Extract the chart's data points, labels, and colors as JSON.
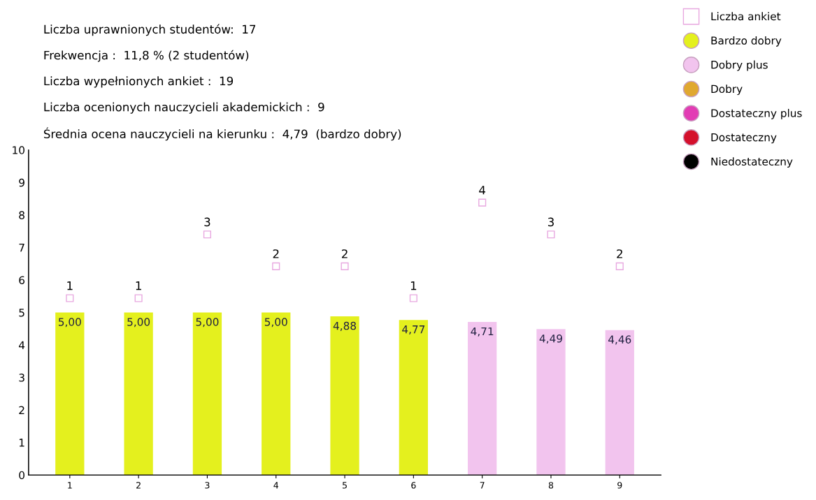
{
  "chart_data": {
    "type": "bar",
    "categories": [
      "1",
      "2",
      "3",
      "4",
      "5",
      "6",
      "7",
      "8",
      "9"
    ],
    "series": [
      {
        "name": "Liczba ankiet",
        "type": "scatter",
        "axis": "y2",
        "color": "#ffffff",
        "values": [
          1,
          1,
          3,
          2,
          2,
          1,
          4,
          3,
          2
        ],
        "value_labels": [
          "1",
          "1",
          "3",
          "2",
          "2",
          "1",
          "4",
          "3",
          "2"
        ]
      },
      {
        "name": "Bardzo dobry",
        "color": "#e4f01e",
        "values": [
          5.0,
          5.0,
          5.0,
          5.0,
          4.88,
          4.77,
          null,
          null,
          null
        ],
        "value_labels": [
          "5,00",
          "5,00",
          "5,00",
          "5,00",
          "4,88",
          "4,77",
          null,
          null,
          null
        ]
      },
      {
        "name": "Dobry plus",
        "color": "#f2c4ee",
        "values": [
          null,
          null,
          null,
          null,
          null,
          null,
          4.71,
          4.49,
          4.46
        ],
        "value_labels": [
          null,
          null,
          null,
          null,
          null,
          null,
          "4,71",
          "4,49",
          "4,46"
        ]
      },
      {
        "name": "Dobry",
        "color": "#e0a830",
        "values": [
          null,
          null,
          null,
          null,
          null,
          null,
          null,
          null,
          null
        ]
      },
      {
        "name": "Dostateczny plus",
        "color": "#e23cb4",
        "values": [
          null,
          null,
          null,
          null,
          null,
          null,
          null,
          null,
          null
        ]
      },
      {
        "name": "Dostateczny",
        "color": "#d4102c",
        "values": [
          null,
          null,
          null,
          null,
          null,
          null,
          null,
          null,
          null
        ]
      },
      {
        "name": "Niedostateczny",
        "color": "#000000",
        "values": [
          null,
          null,
          null,
          null,
          null,
          null,
          null,
          null,
          null
        ]
      }
    ],
    "ylim": [
      0,
      10
    ],
    "yticks": [
      0,
      1,
      2,
      3,
      4,
      5,
      6,
      7,
      8,
      9,
      10
    ],
    "grid": false,
    "legend": "top right",
    "annotations": [
      "Liczba uprawnionych studentów:  17",
      "Frekwencja :  11,8 % (2 studentów)",
      "Liczba wypełnionych ankiet :  19",
      "Liczba ocenionych nauczycieli akademickich :  9",
      "Średnia ocena nauczycieli na kierunku :  4,79  (bardzo dobry)"
    ]
  }
}
